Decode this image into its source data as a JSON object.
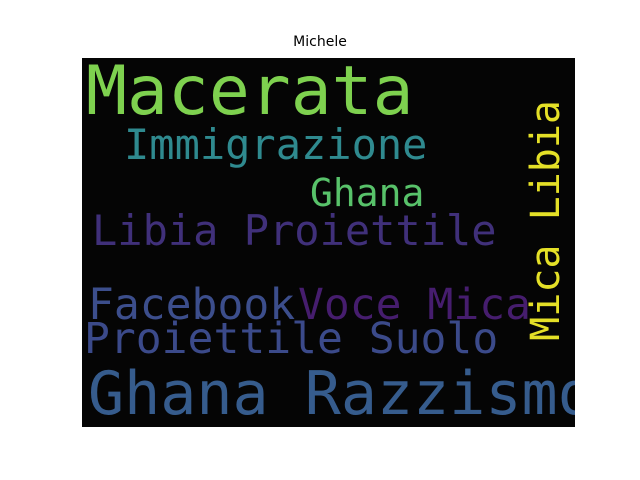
{
  "title": "Michele",
  "colors": {
    "background": "#050505",
    "page": "#ffffff"
  },
  "words": [
    {
      "text": "Macerata",
      "color": "#7ed14f",
      "orientation": "horizontal"
    },
    {
      "text": "Immigrazione",
      "color": "#2f8a8f",
      "orientation": "horizontal"
    },
    {
      "text": "Ghana",
      "color": "#58c26a",
      "orientation": "horizontal"
    },
    {
      "text": "Libia Proiettile",
      "color": "#40307a",
      "orientation": "horizontal"
    },
    {
      "text": "Facebook",
      "color": "#3c4e8c",
      "orientation": "horizontal"
    },
    {
      "text": "Voce Mica",
      "color": "#461d6e",
      "orientation": "horizontal"
    },
    {
      "text": "Proiettile Suolo",
      "color": "#3b4a8a",
      "orientation": "horizontal"
    },
    {
      "text": "Ghana Razzismo",
      "color": "#365c8d",
      "orientation": "horizontal"
    },
    {
      "text": "Mica Libia",
      "color": "#e4e027",
      "orientation": "vertical"
    }
  ]
}
